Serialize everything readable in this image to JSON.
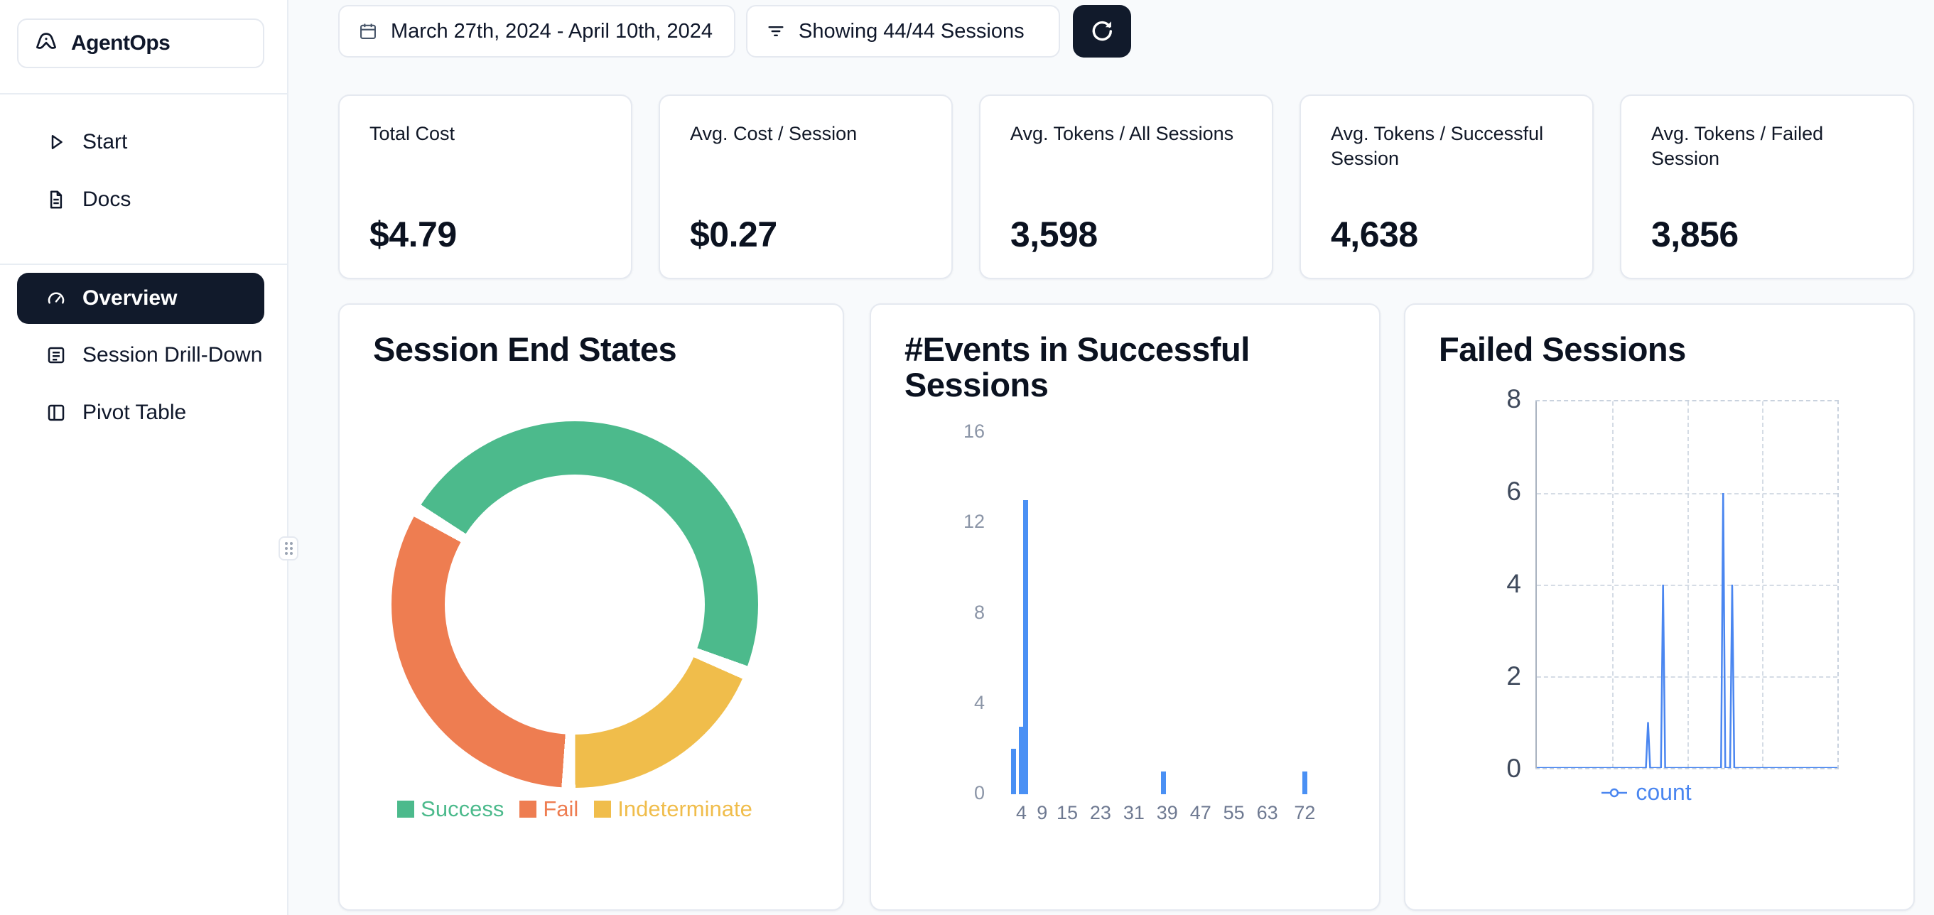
{
  "sidebar": {
    "brand": "AgentOps",
    "items": [
      {
        "label": "Start",
        "icon": "play-icon",
        "active": false
      },
      {
        "label": "Docs",
        "icon": "document-icon",
        "active": false
      },
      {
        "label": "Overview",
        "icon": "gauge-icon",
        "active": true
      },
      {
        "label": "Session Drill-Down",
        "icon": "list-box-icon",
        "active": false
      },
      {
        "label": "Pivot Table",
        "icon": "columns-icon",
        "active": false
      }
    ]
  },
  "topbar": {
    "date_range": "March 27th, 2024 - April 10th, 2024",
    "sessions_filter": "Showing 44/44 Sessions",
    "icons": {
      "date": "calendar-icon",
      "filter": "funnel-icon",
      "refresh": "refresh-icon"
    }
  },
  "stats": [
    {
      "label": "Total Cost",
      "value": "$4.79"
    },
    {
      "label": "Avg. Cost / Session",
      "value": "$0.27"
    },
    {
      "label": "Avg. Tokens / All Sessions",
      "value": "3,598"
    },
    {
      "label": "Avg. Tokens / Successful Session",
      "value": "4,638"
    },
    {
      "label": "Avg. Tokens / Failed Session",
      "value": "3,856"
    }
  ],
  "chart_data": [
    {
      "type": "pie",
      "title": "Session End States",
      "donut": true,
      "start_angle": 303,
      "gap_percent": 1.2,
      "draw_order": [
        0,
        2,
        1
      ],
      "segments": [
        {
          "label": "Success",
          "value": 48,
          "color": "#4cba8c"
        },
        {
          "label": "Fail",
          "value": 33,
          "color": "#ee7d51"
        },
        {
          "label": "Indeterminate",
          "value": 19,
          "color": "#f0bd4b"
        }
      ],
      "legend_position": "bottom"
    },
    {
      "type": "bar",
      "title": "#Events in Successful Sessions",
      "xlabel": "",
      "ylabel": "",
      "xlim": [
        0,
        75
      ],
      "ylim": [
        0,
        16
      ],
      "y_ticks": [
        0,
        4,
        8,
        12,
        16
      ],
      "x_ticks": [
        4,
        9,
        15,
        23,
        31,
        39,
        47,
        55,
        63,
        72
      ],
      "bar_color": "#4a90f4",
      "points": [
        {
          "x": 2,
          "count": 2
        },
        {
          "x": 4,
          "count": 3
        },
        {
          "x": 5,
          "count": 13
        },
        {
          "x": 38,
          "count": 1
        },
        {
          "x": 72,
          "count": 1
        }
      ],
      "grid": false
    },
    {
      "type": "line",
      "title": "Failed Sessions",
      "xlabel": "",
      "ylabel": "",
      "ylim": [
        0,
        8
      ],
      "y_ticks": [
        0,
        2,
        4,
        6,
        8
      ],
      "line_color": "#4a86f0",
      "legend": "count",
      "legend_position": "bottom",
      "grid": "dashed",
      "baseline": 0,
      "spikes": [
        {
          "x": 0.37,
          "count": 1
        },
        {
          "x": 0.42,
          "count": 4
        },
        {
          "x": 0.62,
          "count": 6
        },
        {
          "x": 0.65,
          "count": 4
        }
      ]
    }
  ]
}
